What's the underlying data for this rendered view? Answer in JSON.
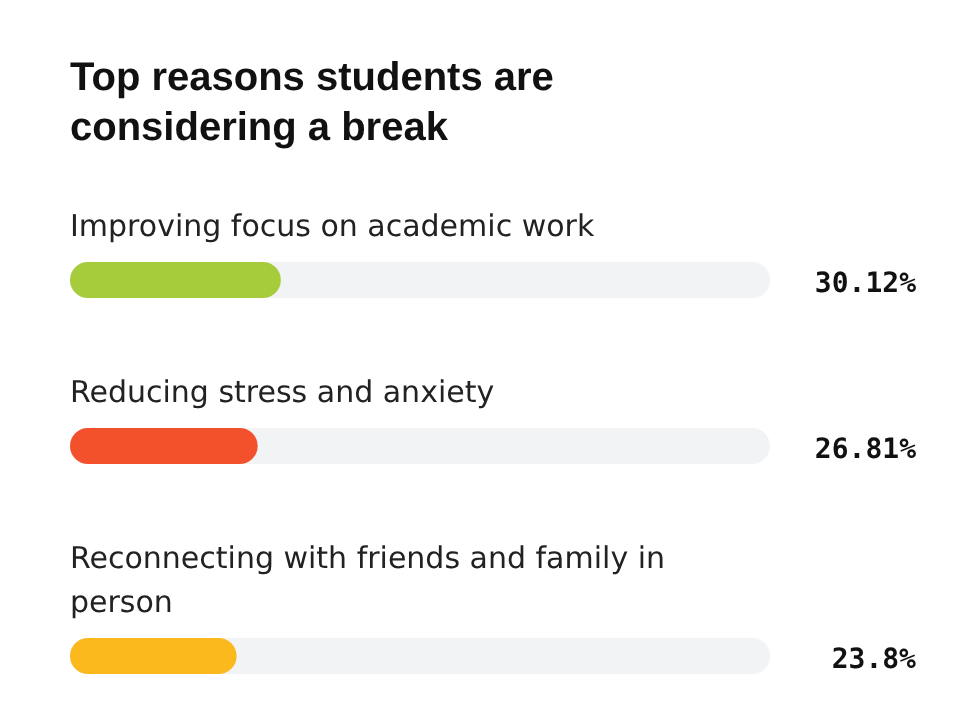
{
  "chart_data": {
    "type": "bar",
    "orientation": "horizontal",
    "title": "Top reasons students are considering a break",
    "categories": [
      "Improving focus on academic work",
      "Reducing stress and anxiety",
      "Reconnecting with friends and family in person"
    ],
    "values": [
      30.12,
      26.81,
      23.8
    ],
    "colors": [
      "#a6cb3b",
      "#f2512b",
      "#fbb91d"
    ],
    "value_labels": [
      "30.12%",
      "26.81%",
      "23.8%"
    ],
    "xlim": [
      0,
      100
    ],
    "tick_labels": false
  }
}
